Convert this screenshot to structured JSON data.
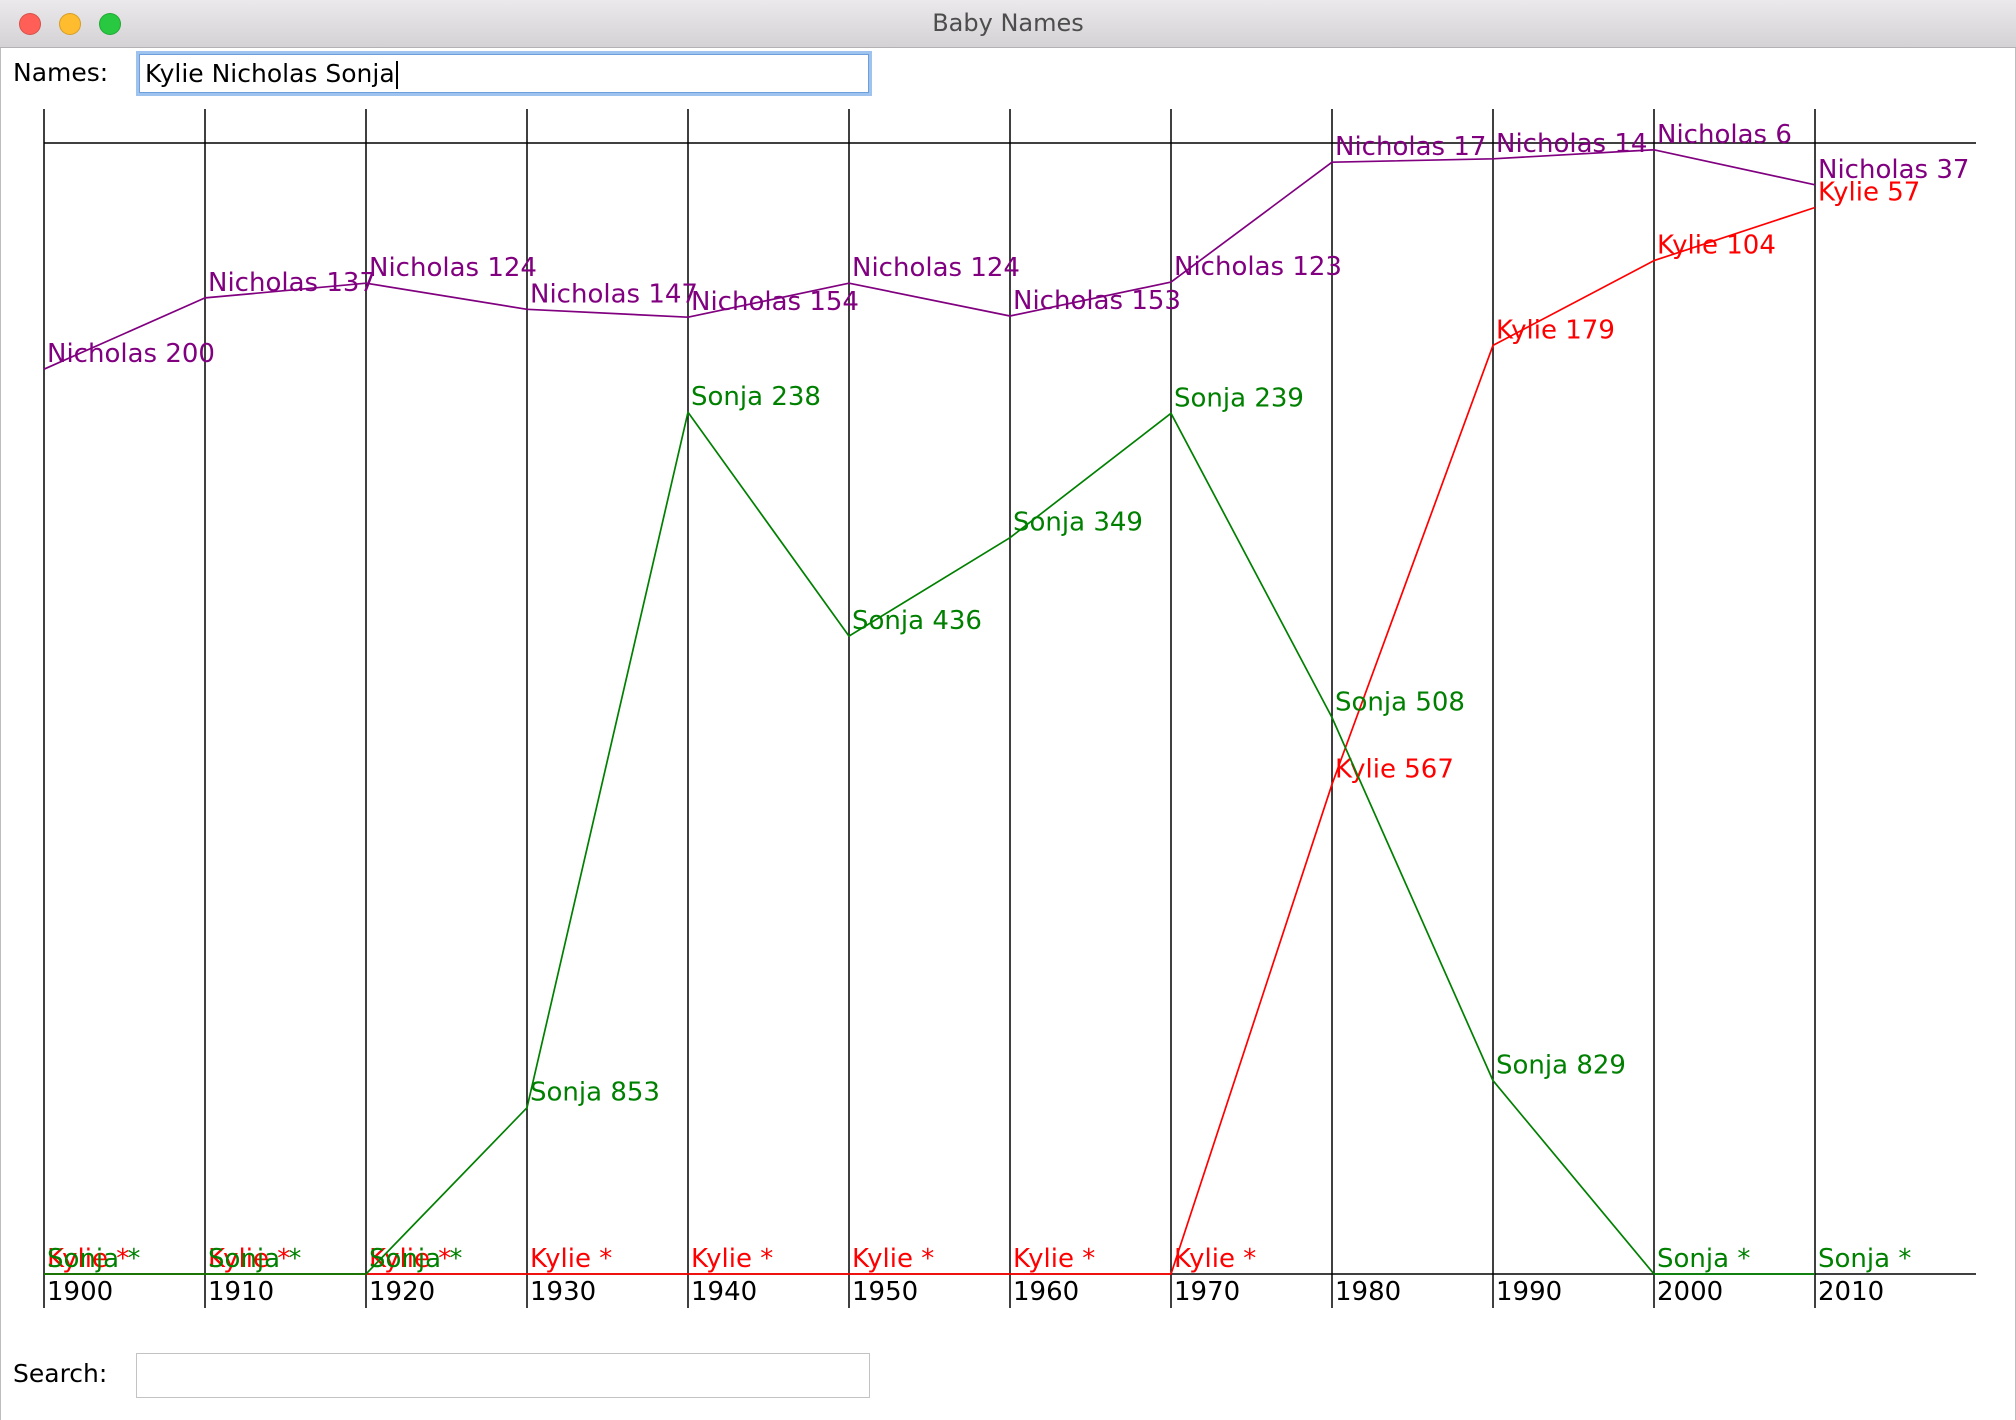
{
  "window": {
    "title": "Baby Names",
    "controls": [
      {
        "icon": "close-icon",
        "color": "#ff5f57"
      },
      {
        "icon": "minimize-icon",
        "color": "#febc2e"
      },
      {
        "icon": "zoom-icon",
        "color": "#28c840"
      }
    ]
  },
  "names_field": {
    "label": "Names:",
    "value": "Kylie Nicholas Sonja"
  },
  "search_field": {
    "label": "Search:",
    "value": ""
  },
  "chart_data": {
    "type": "line",
    "categories": [
      "1900",
      "1910",
      "1920",
      "1930",
      "1940",
      "1950",
      "1960",
      "1970",
      "1980",
      "1990",
      "2000",
      "2010"
    ],
    "ylim": [
      0,
      1000
    ],
    "y_reversed": true,
    "grid": true,
    "missing_marker": "*",
    "series": [
      {
        "name": "Kylie",
        "color": "#ff0000",
        "values": [
          null,
          null,
          null,
          null,
          null,
          null,
          null,
          null,
          567,
          179,
          104,
          57
        ]
      },
      {
        "name": "Nicholas",
        "color": "#800080",
        "values": [
          200,
          137,
          124,
          147,
          154,
          124,
          153,
          123,
          17,
          14,
          6,
          37
        ]
      },
      {
        "name": "Sonja",
        "color": "#008000",
        "values": [
          null,
          null,
          null,
          853,
          238,
          436,
          349,
          239,
          508,
          829,
          null,
          null
        ]
      }
    ]
  }
}
